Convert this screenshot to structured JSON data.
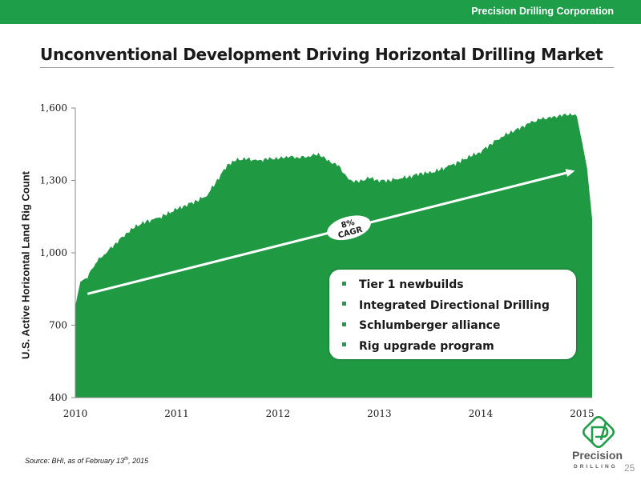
{
  "header": {
    "company": "Precision Drilling Corporation"
  },
  "title": "Unconventional Development Driving Horizontal Drilling Market",
  "colors": {
    "brand_green": "#1e9e48",
    "area_fill": "#1f9a43"
  },
  "chart_data": {
    "type": "area",
    "title": "",
    "xlabel": "",
    "ylabel": "U.S. Active Horizontal  Land Rig Count",
    "ylim": [
      400,
      1600
    ],
    "xlim": [
      2010,
      2015.1
    ],
    "yticks": [
      400,
      700,
      1000,
      1300,
      1600
    ],
    "ytick_labels": [
      "400",
      "700",
      "1,000",
      "1,300",
      "1,600"
    ],
    "xticks": [
      2010,
      2011,
      2012,
      2013,
      2014,
      2015
    ],
    "xtick_labels": [
      "2010",
      "2011",
      "2012",
      "2013",
      "2014",
      "2015"
    ],
    "grid": false,
    "series": [
      {
        "x": [
          2010.0,
          2010.05,
          2010.12,
          2010.2,
          2010.3,
          2010.4,
          2010.5,
          2010.6,
          2010.7,
          2010.8,
          2010.9,
          2011.0,
          2011.1,
          2011.2,
          2011.3,
          2011.4,
          2011.5,
          2011.6,
          2011.7,
          2011.8,
          2011.9,
          2012.0,
          2012.1,
          2012.2,
          2012.3,
          2012.4,
          2012.5,
          2012.6,
          2012.7,
          2012.8,
          2012.9,
          2013.0,
          2013.1,
          2013.2,
          2013.3,
          2013.4,
          2013.5,
          2013.6,
          2013.7,
          2013.8,
          2013.9,
          2014.0,
          2014.1,
          2014.2,
          2014.3,
          2014.4,
          2014.5,
          2014.6,
          2014.7,
          2014.8,
          2014.9,
          2014.95,
          2015.0,
          2015.05,
          2015.1
        ],
        "values": [
          780,
          880,
          900,
          960,
          1000,
          1040,
          1080,
          1110,
          1130,
          1140,
          1160,
          1180,
          1200,
          1215,
          1240,
          1300,
          1365,
          1385,
          1390,
          1380,
          1390,
          1390,
          1400,
          1395,
          1400,
          1410,
          1380,
          1360,
          1300,
          1295,
          1310,
          1300,
          1300,
          1310,
          1315,
          1330,
          1330,
          1345,
          1360,
          1380,
          1400,
          1420,
          1450,
          1480,
          1500,
          1520,
          1540,
          1555,
          1560,
          1570,
          1575,
          1565,
          1460,
          1350,
          1140
        ]
      }
    ],
    "trend": {
      "x": [
        2010.12,
        2014.93
      ],
      "y": [
        830,
        1340
      ],
      "label_line1": "8%",
      "label_line2": "CAGR"
    }
  },
  "callout": {
    "items": [
      "Tier 1 newbuilds",
      "Integrated Directional Drilling",
      "Schlumberger alliance",
      "Rig upgrade program"
    ]
  },
  "footer": {
    "source_prefix": "Source: BHI, as of February 13",
    "source_sup": "th",
    "source_suffix": ", 2015",
    "logo_word": "Precision",
    "logo_sub": "DRILLING",
    "page_number": "25"
  }
}
